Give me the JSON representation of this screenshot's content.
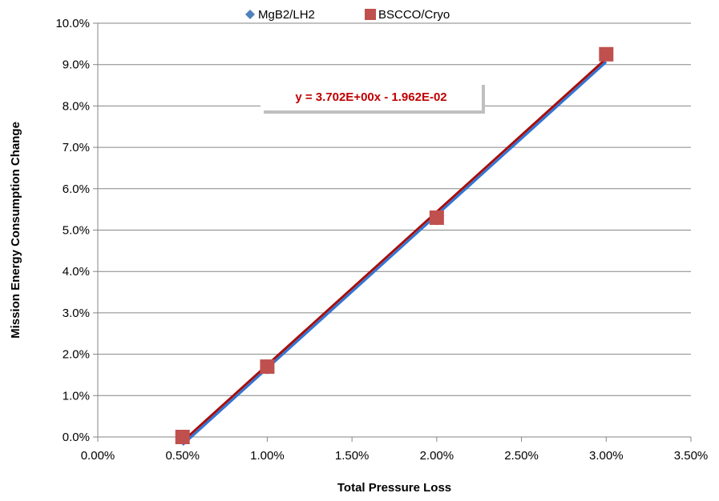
{
  "chart_data": {
    "type": "scatter",
    "title": "",
    "xlabel": "Total Pressure Loss",
    "ylabel": "Mission Energy Consumption Change",
    "xlim": [
      0,
      0.035
    ],
    "ylim": [
      0,
      0.1
    ],
    "x_ticks": [
      0,
      0.005,
      0.01,
      0.015,
      0.02,
      0.025,
      0.03,
      0.035
    ],
    "x_tick_labels": [
      "0.00%",
      "0.50%",
      "1.00%",
      "1.50%",
      "2.00%",
      "2.50%",
      "3.00%",
      "3.50%"
    ],
    "y_ticks": [
      0,
      0.01,
      0.02,
      0.03,
      0.04,
      0.05,
      0.06,
      0.07,
      0.08,
      0.09,
      0.1
    ],
    "y_tick_labels": [
      "0.0%",
      "1.0%",
      "2.0%",
      "3.0%",
      "4.0%",
      "5.0%",
      "6.0%",
      "7.0%",
      "8.0%",
      "9.0%",
      "10.0%"
    ],
    "grid": "horizontal",
    "legend_position": "top",
    "series": [
      {
        "name": "MgB2/LH2",
        "marker": "diamond",
        "color": "#4F81BD",
        "trendline_color": "#2E75D6",
        "x": [
          0.005,
          0.01,
          0.02,
          0.03
        ],
        "y": [
          0.0,
          0.0165,
          0.0525,
          0.0925
        ]
      },
      {
        "name": "BSCCO/Cryo",
        "marker": "square",
        "color": "#C0504D",
        "trendline_color": "#A50E0E",
        "x": [
          0.005,
          0.01,
          0.02,
          0.03
        ],
        "y": [
          0.0,
          0.017,
          0.053,
          0.0925
        ]
      }
    ],
    "trendline": {
      "slope": 3.702,
      "intercept": -0.01962,
      "label": "y = 3.702E+00x - 1.962E-02",
      "label_color": "#C00000"
    }
  }
}
